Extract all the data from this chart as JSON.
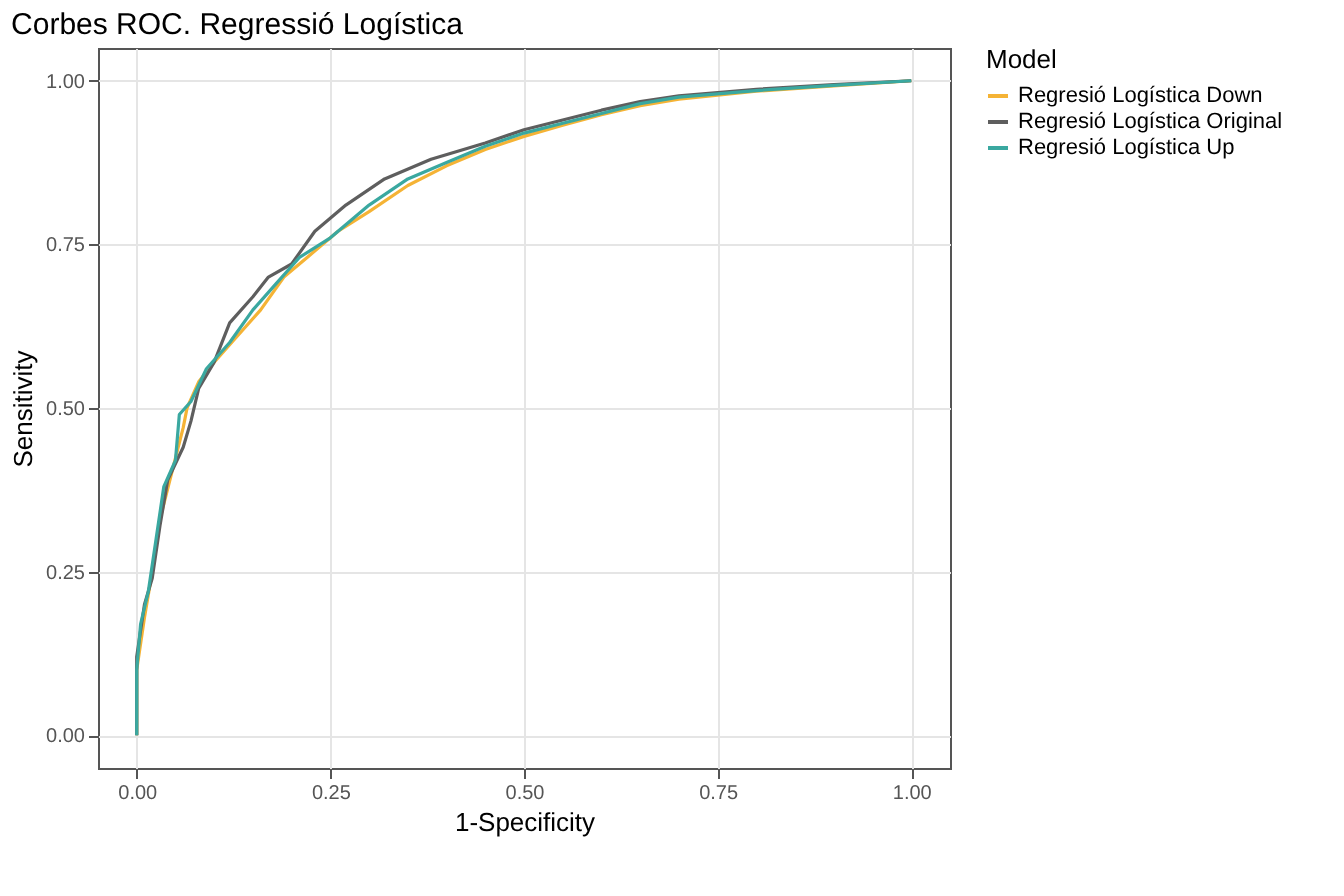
{
  "chart_data": {
    "type": "line",
    "title": "Corbes ROC. Regressió Logística",
    "xlabel": "1-Specificity",
    "ylabel": "Sensitivity",
    "legend_title": "Model",
    "legend": "right",
    "grid": true,
    "xlim": [
      -0.05,
      1.05
    ],
    "ylim": [
      -0.05,
      1.05
    ],
    "xticks": [
      {
        "value": 0,
        "label": "0.00"
      },
      0.25,
      {
        "value": 0.5,
        "label": "0.50"
      },
      0.75,
      {
        "value": 1,
        "label": "1.00"
      }
    ],
    "yticks": [
      {
        "value": 0,
        "label": "0.00"
      },
      0.25,
      {
        "value": 0.5,
        "label": "0.50"
      },
      0.75,
      {
        "value": 1,
        "label": "1.00"
      }
    ],
    "series": [
      {
        "name": "Regresió Logística Down",
        "color": "#f5b335",
        "x": [
          0,
          0,
          0.01,
          0.02,
          0.03,
          0.045,
          0.06,
          0.065,
          0.08,
          0.1,
          0.13,
          0.16,
          0.19,
          0.22,
          0.26,
          0.3,
          0.35,
          0.4,
          0.45,
          0.5,
          0.55,
          0.6,
          0.65,
          0.7,
          0.8,
          0.9,
          1
        ],
        "values": [
          0,
          0.1,
          0.18,
          0.25,
          0.33,
          0.4,
          0.47,
          0.5,
          0.54,
          0.57,
          0.61,
          0.65,
          0.7,
          0.73,
          0.77,
          0.8,
          0.84,
          0.87,
          0.895,
          0.915,
          0.932,
          0.948,
          0.962,
          0.972,
          0.984,
          0.992,
          1
        ]
      },
      {
        "name": "Regresió Logística Original",
        "color": "#5e5e5e",
        "x": [
          0,
          0,
          0.01,
          0.02,
          0.03,
          0.04,
          0.06,
          0.07,
          0.08,
          0.1,
          0.12,
          0.15,
          0.17,
          0.2,
          0.23,
          0.27,
          0.32,
          0.38,
          0.45,
          0.5,
          0.55,
          0.6,
          0.65,
          0.7,
          0.8,
          0.9,
          1
        ],
        "values": [
          0,
          0.12,
          0.2,
          0.24,
          0.32,
          0.39,
          0.44,
          0.48,
          0.53,
          0.57,
          0.63,
          0.67,
          0.7,
          0.72,
          0.77,
          0.81,
          0.85,
          0.88,
          0.905,
          0.925,
          0.94,
          0.955,
          0.968,
          0.977,
          0.987,
          0.994,
          1
        ]
      },
      {
        "name": "Regresió Logística Up",
        "color": "#3aa8a0",
        "x": [
          0,
          0,
          0.005,
          0.015,
          0.025,
          0.035,
          0.05,
          0.055,
          0.07,
          0.09,
          0.12,
          0.15,
          0.18,
          0.21,
          0.25,
          0.3,
          0.35,
          0.4,
          0.45,
          0.5,
          0.55,
          0.6,
          0.65,
          0.7,
          0.8,
          0.9,
          1
        ],
        "values": [
          0,
          0.1,
          0.17,
          0.22,
          0.3,
          0.38,
          0.42,
          0.49,
          0.51,
          0.56,
          0.6,
          0.65,
          0.69,
          0.73,
          0.76,
          0.81,
          0.85,
          0.875,
          0.9,
          0.92,
          0.935,
          0.95,
          0.965,
          0.975,
          0.985,
          0.993,
          1
        ]
      }
    ]
  }
}
